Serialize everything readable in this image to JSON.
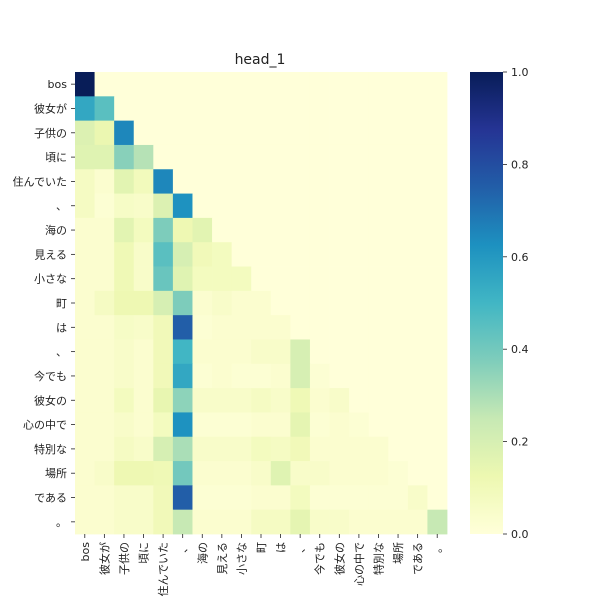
{
  "chart_data": {
    "type": "heatmap",
    "title": "head_1",
    "xlabel": "",
    "ylabel": "",
    "tokens": [
      "bos",
      "彼女が",
      "子供の",
      "頃に",
      "住んでいた",
      "、",
      "海の",
      "見える",
      "小さな",
      "町",
      "は",
      "、",
      "今でも",
      "彼女の",
      "心の中で",
      "特別な",
      "場所",
      "である",
      "。"
    ],
    "x_tick_labels": [
      "bos",
      "彼女が",
      "子供の",
      "頃に",
      "住んでいた",
      "、",
      "海の",
      "見える",
      "小さな",
      "町",
      "は",
      "、",
      "今でも",
      "彼女の",
      "心の中で",
      "特別な",
      "場所",
      "である",
      "。"
    ],
    "y_tick_labels": [
      "bos",
      "彼女が",
      "子供の",
      "頃に",
      "住んでいた",
      "、",
      "海の",
      "見える",
      "小さな",
      "町",
      "は",
      "、",
      "今でも",
      "彼女の",
      "心の中で",
      "特別な",
      "場所",
      "である",
      "。"
    ],
    "colormap": "YlGnBu",
    "colorbar": {
      "min": 0.0,
      "max": 1.0,
      "ticks": [
        0.0,
        0.2,
        0.4,
        0.6,
        0.8,
        1.0
      ],
      "tick_labels": [
        "0.0",
        "0.2",
        "0.4",
        "0.6",
        "0.8",
        "1.0"
      ]
    },
    "values": [
      [
        1.0,
        0,
        0,
        0,
        0,
        0,
        0,
        0,
        0,
        0,
        0,
        0,
        0,
        0,
        0,
        0,
        0,
        0,
        0
      ],
      [
        0.55,
        0.45,
        0,
        0,
        0,
        0,
        0,
        0,
        0,
        0,
        0,
        0,
        0,
        0,
        0,
        0,
        0,
        0,
        0
      ],
      [
        0.18,
        0.13,
        0.65,
        0,
        0,
        0,
        0,
        0,
        0,
        0,
        0,
        0,
        0,
        0,
        0,
        0,
        0,
        0,
        0
      ],
      [
        0.17,
        0.17,
        0.36,
        0.28,
        0,
        0,
        0,
        0,
        0,
        0,
        0,
        0,
        0,
        0,
        0,
        0,
        0,
        0,
        0
      ],
      [
        0.07,
        0.03,
        0.16,
        0.09,
        0.65,
        0,
        0,
        0,
        0,
        0,
        0,
        0,
        0,
        0,
        0,
        0,
        0,
        0,
        0
      ],
      [
        0.07,
        0.02,
        0.06,
        0.05,
        0.18,
        0.62,
        0,
        0,
        0,
        0,
        0,
        0,
        0,
        0,
        0,
        0,
        0,
        0,
        0
      ],
      [
        0.03,
        0.03,
        0.16,
        0.08,
        0.38,
        0.12,
        0.16,
        0,
        0,
        0,
        0,
        0,
        0,
        0,
        0,
        0,
        0,
        0,
        0
      ],
      [
        0.03,
        0.03,
        0.11,
        0.05,
        0.45,
        0.2,
        0.1,
        0.08,
        0,
        0,
        0,
        0,
        0,
        0,
        0,
        0,
        0,
        0,
        0
      ],
      [
        0.03,
        0.03,
        0.11,
        0.05,
        0.42,
        0.17,
        0.08,
        0.08,
        0.08,
        0,
        0,
        0,
        0,
        0,
        0,
        0,
        0,
        0,
        0
      ],
      [
        0.03,
        0.07,
        0.12,
        0.12,
        0.2,
        0.38,
        0.03,
        0.05,
        0.03,
        0.03,
        0,
        0,
        0,
        0,
        0,
        0,
        0,
        0,
        0
      ],
      [
        0.03,
        0.03,
        0.06,
        0.05,
        0.1,
        0.75,
        0.02,
        0.03,
        0.03,
        0.03,
        0.03,
        0,
        0,
        0,
        0,
        0,
        0,
        0,
        0
      ],
      [
        0.03,
        0.03,
        0.05,
        0.03,
        0.1,
        0.5,
        0.03,
        0.03,
        0.03,
        0.05,
        0.05,
        0.2,
        0,
        0,
        0,
        0,
        0,
        0,
        0
      ],
      [
        0.03,
        0.03,
        0.05,
        0.03,
        0.1,
        0.55,
        0.02,
        0.03,
        0.02,
        0.02,
        0.03,
        0.2,
        0.02,
        0,
        0,
        0,
        0,
        0,
        0
      ],
      [
        0.03,
        0.03,
        0.08,
        0.03,
        0.14,
        0.35,
        0.05,
        0.05,
        0.05,
        0.07,
        0.05,
        0.11,
        0.03,
        0.05,
        0,
        0,
        0,
        0,
        0
      ],
      [
        0.03,
        0.03,
        0.05,
        0.03,
        0.08,
        0.62,
        0.02,
        0.02,
        0.02,
        0.03,
        0.03,
        0.15,
        0.02,
        0.03,
        0.02,
        0,
        0,
        0,
        0
      ],
      [
        0.03,
        0.03,
        0.07,
        0.05,
        0.2,
        0.3,
        0.05,
        0.05,
        0.05,
        0.08,
        0.07,
        0.1,
        0.03,
        0.03,
        0.03,
        0.03,
        0,
        0,
        0
      ],
      [
        0.03,
        0.05,
        0.12,
        0.12,
        0.11,
        0.4,
        0.03,
        0.03,
        0.03,
        0.05,
        0.17,
        0.05,
        0.05,
        0.03,
        0.03,
        0.03,
        0.02,
        0,
        0
      ],
      [
        0.03,
        0.03,
        0.05,
        0.05,
        0.1,
        0.75,
        0.02,
        0.02,
        0.02,
        0.03,
        0.03,
        0.08,
        0.02,
        0.02,
        0.02,
        0.02,
        0.02,
        0.05,
        0
      ],
      [
        0.03,
        0.03,
        0.05,
        0.05,
        0.1,
        0.25,
        0.03,
        0.03,
        0.03,
        0.07,
        0.07,
        0.15,
        0.05,
        0.05,
        0.03,
        0.03,
        0.03,
        0.03,
        0.25
      ]
    ]
  }
}
